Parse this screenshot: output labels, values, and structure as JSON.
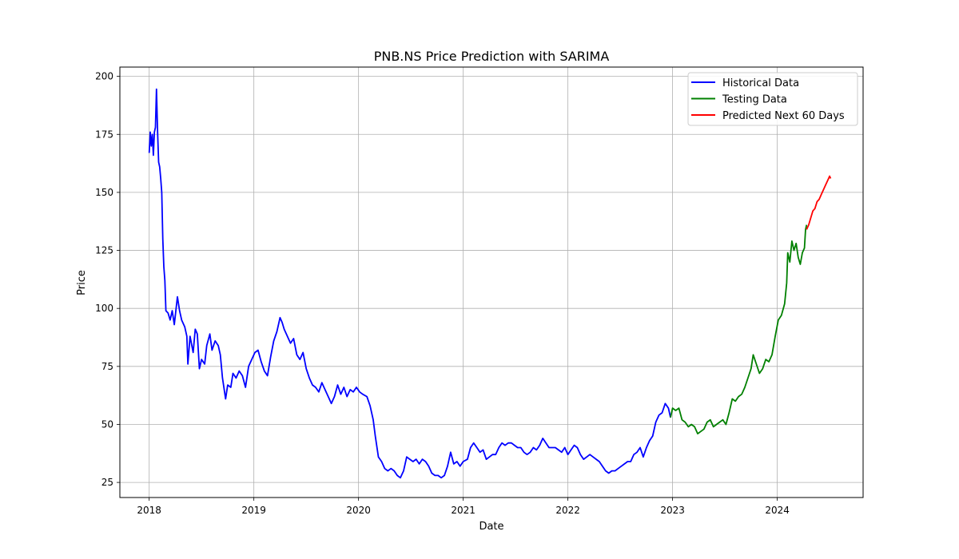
{
  "chart_data": {
    "type": "line",
    "title": "PNB.NS Price Prediction with SARIMA",
    "xlabel": "Date",
    "ylabel": "Price",
    "xlim": [
      2017.72,
      2024.82
    ],
    "ylim": [
      18.5,
      204
    ],
    "x_ticks": [
      2018,
      2019,
      2020,
      2021,
      2022,
      2023,
      2024
    ],
    "y_ticks": [
      25,
      50,
      75,
      100,
      125,
      150,
      175,
      200
    ],
    "grid": true,
    "legend_position": "top-right",
    "series": [
      {
        "name": "Historical Data",
        "color": "#0000ff",
        "points": [
          [
            2018.0,
            167
          ],
          [
            2018.01,
            176
          ],
          [
            2018.02,
            170
          ],
          [
            2018.03,
            175
          ],
          [
            2018.04,
            166
          ],
          [
            2018.05,
            176
          ],
          [
            2018.06,
            178
          ],
          [
            2018.07,
            194.5
          ],
          [
            2018.08,
            176
          ],
          [
            2018.09,
            163
          ],
          [
            2018.1,
            161
          ],
          [
            2018.11,
            156
          ],
          [
            2018.12,
            150
          ],
          [
            2018.13,
            130
          ],
          [
            2018.14,
            118
          ],
          [
            2018.15,
            112
          ],
          [
            2018.16,
            99
          ],
          [
            2018.18,
            98
          ],
          [
            2018.2,
            95
          ],
          [
            2018.22,
            99
          ],
          [
            2018.24,
            93
          ],
          [
            2018.27,
            105
          ],
          [
            2018.29,
            99
          ],
          [
            2018.31,
            95
          ],
          [
            2018.34,
            92
          ],
          [
            2018.36,
            88
          ],
          [
            2018.37,
            76
          ],
          [
            2018.39,
            88
          ],
          [
            2018.42,
            81
          ],
          [
            2018.44,
            91
          ],
          [
            2018.46,
            89
          ],
          [
            2018.48,
            74
          ],
          [
            2018.5,
            78
          ],
          [
            2018.53,
            76
          ],
          [
            2018.55,
            84
          ],
          [
            2018.58,
            89
          ],
          [
            2018.6,
            82
          ],
          [
            2018.63,
            86
          ],
          [
            2018.66,
            84
          ],
          [
            2018.68,
            80
          ],
          [
            2018.7,
            70
          ],
          [
            2018.73,
            61
          ],
          [
            2018.75,
            67
          ],
          [
            2018.78,
            66
          ],
          [
            2018.8,
            72
          ],
          [
            2018.83,
            70
          ],
          [
            2018.86,
            73
          ],
          [
            2018.89,
            71
          ],
          [
            2018.92,
            66
          ],
          [
            2018.95,
            75
          ],
          [
            2018.98,
            78
          ],
          [
            2019.01,
            81
          ],
          [
            2019.04,
            82
          ],
          [
            2019.07,
            77
          ],
          [
            2019.1,
            73
          ],
          [
            2019.13,
            71
          ],
          [
            2019.16,
            79
          ],
          [
            2019.19,
            86
          ],
          [
            2019.22,
            90
          ],
          [
            2019.25,
            96
          ],
          [
            2019.27,
            94
          ],
          [
            2019.29,
            91
          ],
          [
            2019.32,
            88
          ],
          [
            2019.35,
            85
          ],
          [
            2019.38,
            87
          ],
          [
            2019.41,
            80
          ],
          [
            2019.44,
            78
          ],
          [
            2019.47,
            81
          ],
          [
            2019.5,
            74
          ],
          [
            2019.53,
            70
          ],
          [
            2019.56,
            67
          ],
          [
            2019.59,
            66
          ],
          [
            2019.62,
            64
          ],
          [
            2019.65,
            68
          ],
          [
            2019.68,
            65
          ],
          [
            2019.71,
            62
          ],
          [
            2019.74,
            59
          ],
          [
            2019.77,
            62
          ],
          [
            2019.8,
            67
          ],
          [
            2019.83,
            63
          ],
          [
            2019.86,
            66
          ],
          [
            2019.89,
            62
          ],
          [
            2019.92,
            65
          ],
          [
            2019.95,
            64
          ],
          [
            2019.98,
            66
          ],
          [
            2020.01,
            64
          ],
          [
            2020.04,
            63
          ],
          [
            2020.08,
            62
          ],
          [
            2020.11,
            58
          ],
          [
            2020.14,
            52
          ],
          [
            2020.16,
            45
          ],
          [
            2020.19,
            36
          ],
          [
            2020.22,
            34
          ],
          [
            2020.25,
            31
          ],
          [
            2020.28,
            30
          ],
          [
            2020.31,
            31
          ],
          [
            2020.34,
            30
          ],
          [
            2020.37,
            28
          ],
          [
            2020.4,
            27
          ],
          [
            2020.43,
            30
          ],
          [
            2020.46,
            36
          ],
          [
            2020.49,
            35
          ],
          [
            2020.52,
            34
          ],
          [
            2020.55,
            35
          ],
          [
            2020.58,
            33
          ],
          [
            2020.61,
            35
          ],
          [
            2020.64,
            34
          ],
          [
            2020.67,
            32
          ],
          [
            2020.7,
            29
          ],
          [
            2020.73,
            28
          ],
          [
            2020.76,
            28
          ],
          [
            2020.79,
            27
          ],
          [
            2020.82,
            28
          ],
          [
            2020.85,
            32
          ],
          [
            2020.88,
            38
          ],
          [
            2020.91,
            33
          ],
          [
            2020.94,
            34
          ],
          [
            2020.97,
            32
          ],
          [
            2021.0,
            34
          ],
          [
            2021.04,
            35
          ],
          [
            2021.07,
            40
          ],
          [
            2021.1,
            42
          ],
          [
            2021.13,
            40
          ],
          [
            2021.16,
            38
          ],
          [
            2021.19,
            39
          ],
          [
            2021.22,
            35
          ],
          [
            2021.25,
            36
          ],
          [
            2021.28,
            37
          ],
          [
            2021.31,
            37
          ],
          [
            2021.34,
            40
          ],
          [
            2021.37,
            42
          ],
          [
            2021.4,
            41
          ],
          [
            2021.43,
            42
          ],
          [
            2021.46,
            42
          ],
          [
            2021.49,
            41
          ],
          [
            2021.52,
            40
          ],
          [
            2021.55,
            40
          ],
          [
            2021.58,
            38
          ],
          [
            2021.61,
            37
          ],
          [
            2021.64,
            38
          ],
          [
            2021.67,
            40
          ],
          [
            2021.7,
            39
          ],
          [
            2021.73,
            41
          ],
          [
            2021.76,
            44
          ],
          [
            2021.79,
            42
          ],
          [
            2021.82,
            40
          ],
          [
            2021.85,
            40
          ],
          [
            2021.88,
            40
          ],
          [
            2021.91,
            39
          ],
          [
            2021.94,
            38
          ],
          [
            2021.97,
            40
          ],
          [
            2022.0,
            37
          ],
          [
            2022.03,
            39
          ],
          [
            2022.06,
            41
          ],
          [
            2022.09,
            40
          ],
          [
            2022.12,
            37
          ],
          [
            2022.15,
            35
          ],
          [
            2022.18,
            36
          ],
          [
            2022.21,
            37
          ],
          [
            2022.24,
            36
          ],
          [
            2022.27,
            35
          ],
          [
            2022.3,
            34
          ],
          [
            2022.33,
            32
          ],
          [
            2022.36,
            30
          ],
          [
            2022.39,
            29
          ],
          [
            2022.42,
            30
          ],
          [
            2022.45,
            30
          ],
          [
            2022.48,
            31
          ],
          [
            2022.51,
            32
          ],
          [
            2022.54,
            33
          ],
          [
            2022.57,
            34
          ],
          [
            2022.6,
            34
          ],
          [
            2022.63,
            37
          ],
          [
            2022.66,
            38
          ],
          [
            2022.69,
            40
          ],
          [
            2022.72,
            36
          ],
          [
            2022.75,
            40
          ],
          [
            2022.78,
            43
          ],
          [
            2022.81,
            45
          ],
          [
            2022.84,
            51
          ],
          [
            2022.87,
            54
          ],
          [
            2022.9,
            55
          ],
          [
            2022.93,
            59
          ],
          [
            2022.96,
            57
          ],
          [
            2022.98,
            53
          ]
        ]
      },
      {
        "name": "Testing Data",
        "color": "#008000",
        "points": [
          [
            2022.98,
            53
          ],
          [
            2023.0,
            57
          ],
          [
            2023.03,
            56
          ],
          [
            2023.06,
            57
          ],
          [
            2023.09,
            52
          ],
          [
            2023.12,
            51
          ],
          [
            2023.15,
            49
          ],
          [
            2023.18,
            50
          ],
          [
            2023.21,
            49
          ],
          [
            2023.24,
            46
          ],
          [
            2023.27,
            47
          ],
          [
            2023.3,
            48
          ],
          [
            2023.33,
            51
          ],
          [
            2023.36,
            52
          ],
          [
            2023.39,
            49
          ],
          [
            2023.42,
            50
          ],
          [
            2023.45,
            51
          ],
          [
            2023.48,
            52
          ],
          [
            2023.51,
            50
          ],
          [
            2023.54,
            55
          ],
          [
            2023.57,
            61
          ],
          [
            2023.6,
            60
          ],
          [
            2023.63,
            62
          ],
          [
            2023.66,
            63
          ],
          [
            2023.69,
            66
          ],
          [
            2023.72,
            70
          ],
          [
            2023.75,
            74
          ],
          [
            2023.77,
            80
          ],
          [
            2023.8,
            76
          ],
          [
            2023.83,
            72
          ],
          [
            2023.86,
            74
          ],
          [
            2023.89,
            78
          ],
          [
            2023.92,
            77
          ],
          [
            2023.95,
            80
          ],
          [
            2023.98,
            88
          ],
          [
            2024.01,
            95
          ],
          [
            2024.04,
            97
          ],
          [
            2024.07,
            102
          ],
          [
            2024.09,
            111
          ],
          [
            2024.1,
            124
          ],
          [
            2024.12,
            120
          ],
          [
            2024.14,
            129
          ],
          [
            2024.16,
            125
          ],
          [
            2024.18,
            128
          ],
          [
            2024.2,
            122
          ],
          [
            2024.22,
            119
          ],
          [
            2024.24,
            124
          ],
          [
            2024.26,
            126
          ],
          [
            2024.27,
            134
          ],
          [
            2024.28,
            136
          ]
        ]
      },
      {
        "name": "Predicted Next 60 Days",
        "color": "#ff0000",
        "points": [
          [
            2024.28,
            134
          ],
          [
            2024.3,
            136
          ],
          [
            2024.32,
            139
          ],
          [
            2024.34,
            142
          ],
          [
            2024.36,
            143
          ],
          [
            2024.38,
            146
          ],
          [
            2024.4,
            147
          ],
          [
            2024.42,
            149
          ],
          [
            2024.44,
            151
          ],
          [
            2024.46,
            153
          ],
          [
            2024.48,
            155
          ],
          [
            2024.5,
            157
          ],
          [
            2024.51,
            156
          ]
        ]
      }
    ]
  }
}
